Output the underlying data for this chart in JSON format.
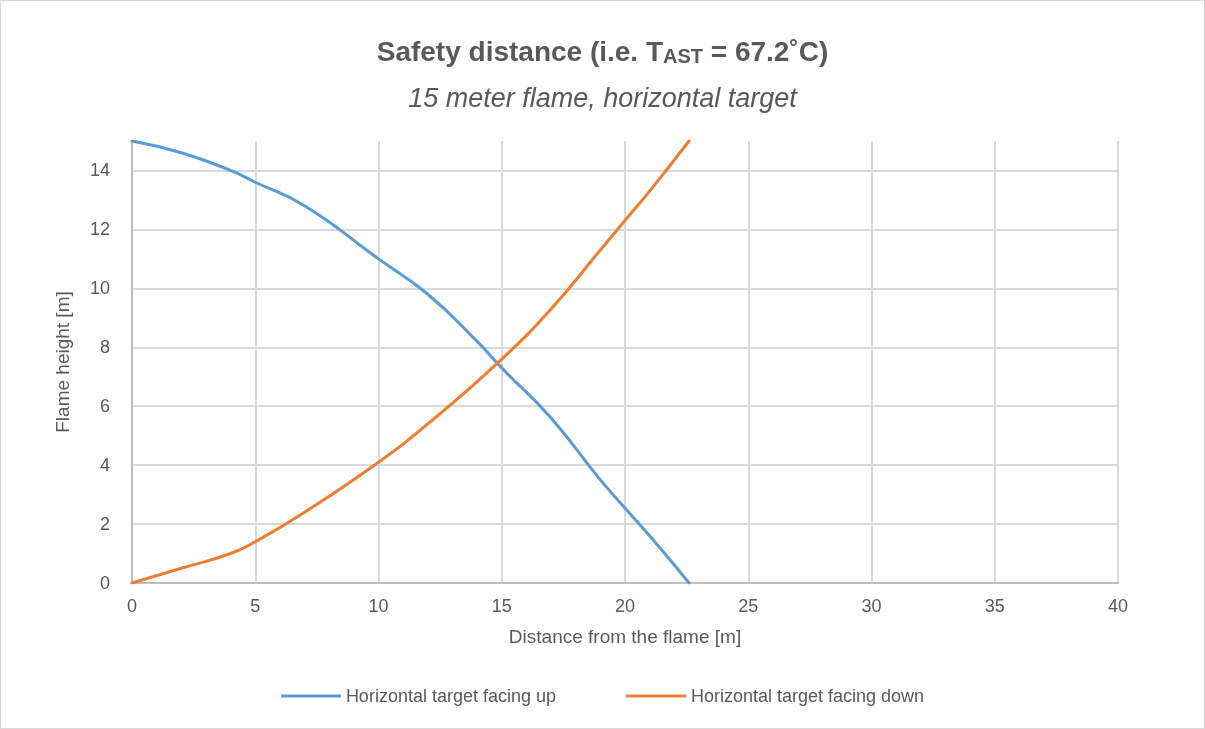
{
  "chart_data": {
    "type": "line",
    "title": "Safety distance (i.e. T$_{AST}$ = 67.2˚C)",
    "subtitle": "15 meter flame, horizontal target",
    "xlabel": "Distance from the flame [m]",
    "ylabel": "Flame height [m]",
    "xlim": [
      0,
      40
    ],
    "xticks": [
      0,
      5,
      10,
      15,
      20,
      25,
      30,
      35,
      40
    ],
    "ylim": [
      0,
      15
    ],
    "yticks": [
      0,
      2,
      4,
      6,
      8,
      10,
      12,
      14
    ],
    "grid": true,
    "legend": "bottom",
    "marker": "none",
    "line_style": "solid",
    "series": [
      {
        "name": "Horizontal target facing up",
        "color": "#5b9bd5",
        "x": [
          0,
          2,
          4,
          5,
          7,
          10,
          12,
          14,
          15,
          17,
          19,
          21,
          22.6
        ],
        "values": [
          15,
          14.6,
          14,
          13.6,
          12.8,
          11,
          9.8,
          8.2,
          7.3,
          5.6,
          3.5,
          1.6,
          0
        ]
      },
      {
        "name": "Horizontal target facing down",
        "color": "#ed7d31",
        "x": [
          0,
          2,
          4,
          5,
          7,
          10,
          12,
          15,
          17,
          19,
          20,
          21,
          22.6
        ],
        "values": [
          0,
          0.5,
          1,
          1.4,
          2.4,
          4.1,
          5.4,
          7.6,
          9.3,
          11.3,
          12.3,
          13.3,
          15
        ]
      }
    ]
  }
}
